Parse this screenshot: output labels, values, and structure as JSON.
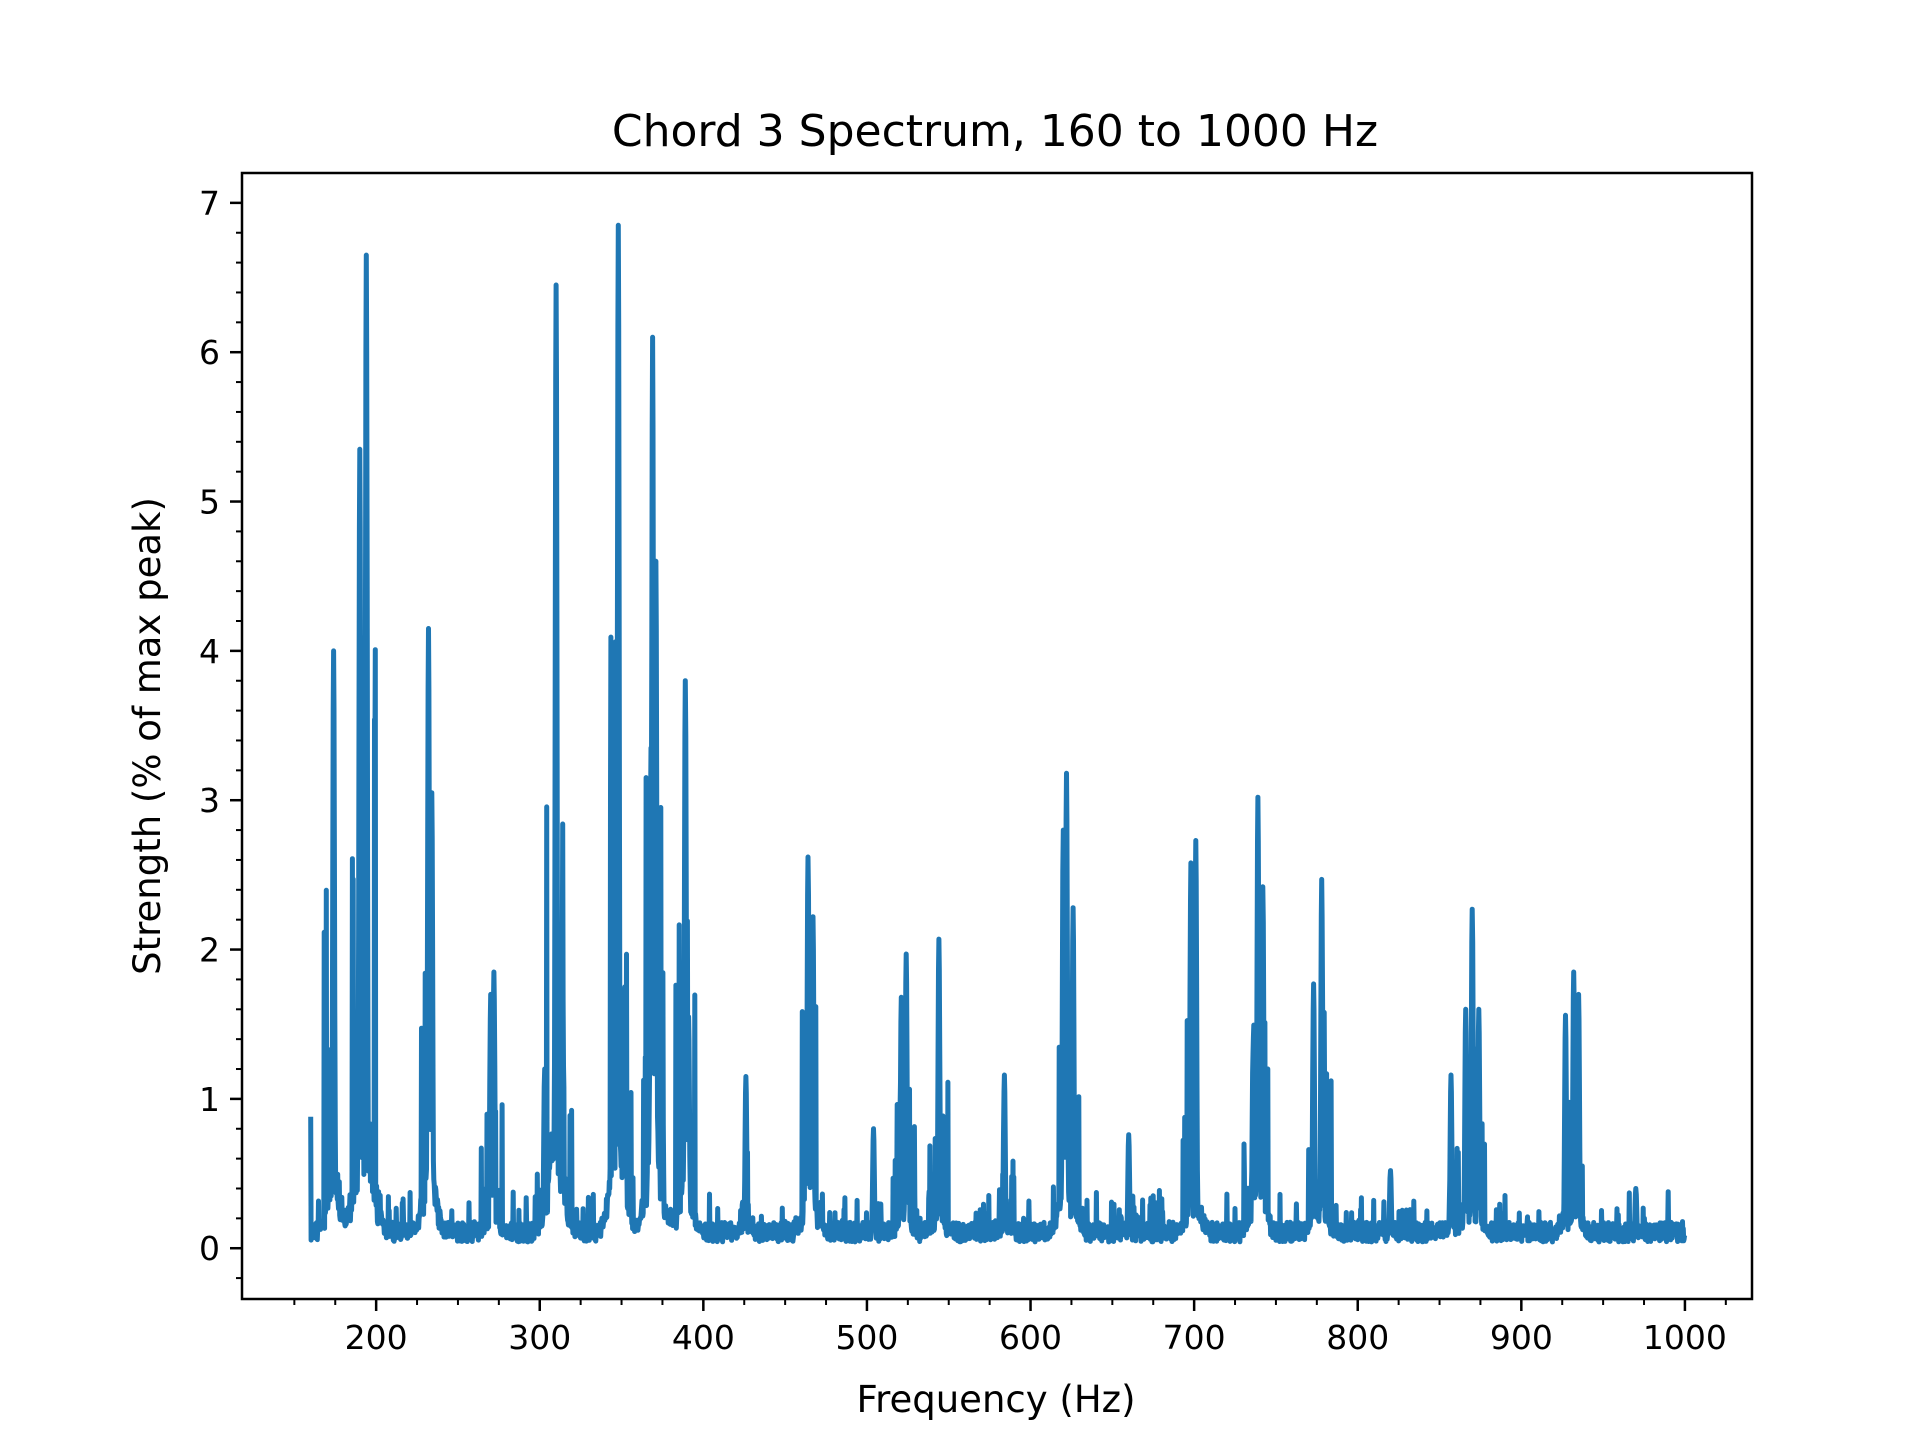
{
  "chart_data": {
    "type": "line",
    "title": "Chord 3 Spectrum, 160 to 1000 Hz",
    "xlabel": "Frequency (Hz)",
    "ylabel": "Strength (% of max peak)",
    "xlim": [
      118,
      1041
    ],
    "ylim": [
      -0.34,
      7.2
    ],
    "x_ticks": [
      200,
      300,
      400,
      500,
      600,
      700,
      800,
      900,
      1000
    ],
    "y_ticks": [
      0,
      1,
      2,
      3,
      4,
      5,
      6,
      7
    ],
    "grid": false,
    "legend": "none",
    "series": [
      {
        "color": "#1f77b4",
        "baseline": 0.12,
        "noise": 0.1,
        "x_range": [
          160,
          1000
        ],
        "start_value": 0.88,
        "peaks": [
          [
            174,
            4.0
          ],
          [
            190,
            5.35
          ],
          [
            194,
            6.65
          ],
          [
            232,
            4.15
          ],
          [
            234,
            3.05
          ],
          [
            272,
            1.85
          ],
          [
            270,
            1.7
          ],
          [
            303,
            1.2
          ],
          [
            310,
            6.45
          ],
          [
            314,
            1.85
          ],
          [
            345,
            2.8
          ],
          [
            348,
            6.85
          ],
          [
            352,
            1.75
          ],
          [
            368,
            3.35
          ],
          [
            369,
            6.1
          ],
          [
            371,
            4.6
          ],
          [
            375,
            1.25
          ],
          [
            389,
            3.8
          ],
          [
            391,
            1.55
          ],
          [
            426,
            1.15
          ],
          [
            464,
            2.62
          ],
          [
            467,
            2.22
          ],
          [
            504,
            0.8
          ],
          [
            521,
            1.68
          ],
          [
            524,
            1.97
          ],
          [
            544,
            2.07
          ],
          [
            584,
            1.16
          ],
          [
            620,
            2.8
          ],
          [
            622,
            3.18
          ],
          [
            626,
            2.28
          ],
          [
            660,
            0.76
          ],
          [
            698,
            2.58
          ],
          [
            701,
            2.73
          ],
          [
            736,
            1.3
          ],
          [
            739,
            3.02
          ],
          [
            742,
            2.42
          ],
          [
            773,
            1.77
          ],
          [
            778,
            2.47
          ],
          [
            820,
            0.52
          ],
          [
            857,
            1.16
          ],
          [
            866,
            1.6
          ],
          [
            870,
            2.27
          ],
          [
            874,
            1.6
          ],
          [
            927,
            1.56
          ],
          [
            932,
            1.85
          ],
          [
            935,
            1.7
          ],
          [
            970,
            0.4
          ]
        ]
      }
    ]
  }
}
